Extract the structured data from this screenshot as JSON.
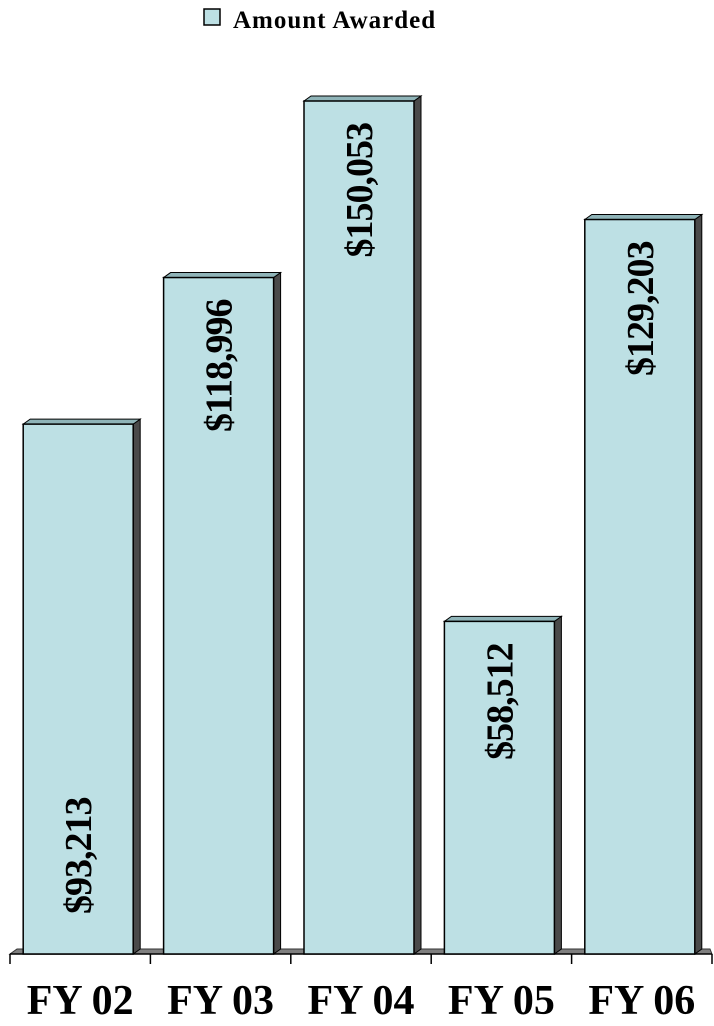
{
  "chart_data": {
    "type": "bar",
    "categories": [
      "FY 02",
      "FY 03",
      "FY 04",
      "FY 05",
      "FY 06"
    ],
    "series": [
      {
        "name": "Amount Awarded",
        "values": [
          93213,
          118996,
          150053,
          58512,
          129203
        ],
        "labels": [
          "$93,213",
          "$118,996",
          "$150,053",
          "$58,512",
          "$129,203"
        ]
      }
    ],
    "legend_position": "top-center",
    "bar_color": "#BDE0E4",
    "bar_side_color": "#4A4A4A",
    "floor_color": "#7F7F7F",
    "grid": false,
    "ylim": [
      0,
      150053
    ]
  }
}
